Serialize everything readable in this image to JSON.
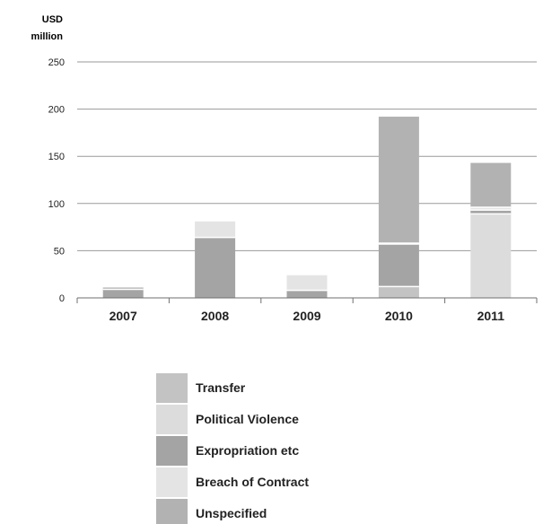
{
  "chart_data": {
    "type": "bar",
    "stacked": true,
    "ylabel": "USD million",
    "ylabel_lines": [
      "USD",
      "million"
    ],
    "ylim": [
      0,
      250
    ],
    "yticks": [
      0,
      50,
      100,
      150,
      200,
      250
    ],
    "grid": true,
    "legend_position": "bottom",
    "categories": [
      "2007",
      "2008",
      "2009",
      "2010",
      "2011"
    ],
    "series": [
      {
        "name": "Transfer",
        "color": "#c3c3c3",
        "values": [
          0,
          0,
          0,
          12,
          0
        ]
      },
      {
        "name": "Political Violence",
        "color": "#dcdcdc",
        "values": [
          0,
          0,
          0,
          0,
          89
        ]
      },
      {
        "name": "Expropriation etc",
        "color": "#a4a4a4",
        "values": [
          9,
          64,
          8,
          45,
          4
        ]
      },
      {
        "name": "Breach of Contract",
        "color": "#e4e4e4",
        "values": [
          0,
          17,
          16,
          1,
          3
        ]
      },
      {
        "name": "Unspecified",
        "color": "#b2b2b2",
        "values": [
          2,
          0,
          0,
          134,
          47
        ]
      }
    ]
  }
}
